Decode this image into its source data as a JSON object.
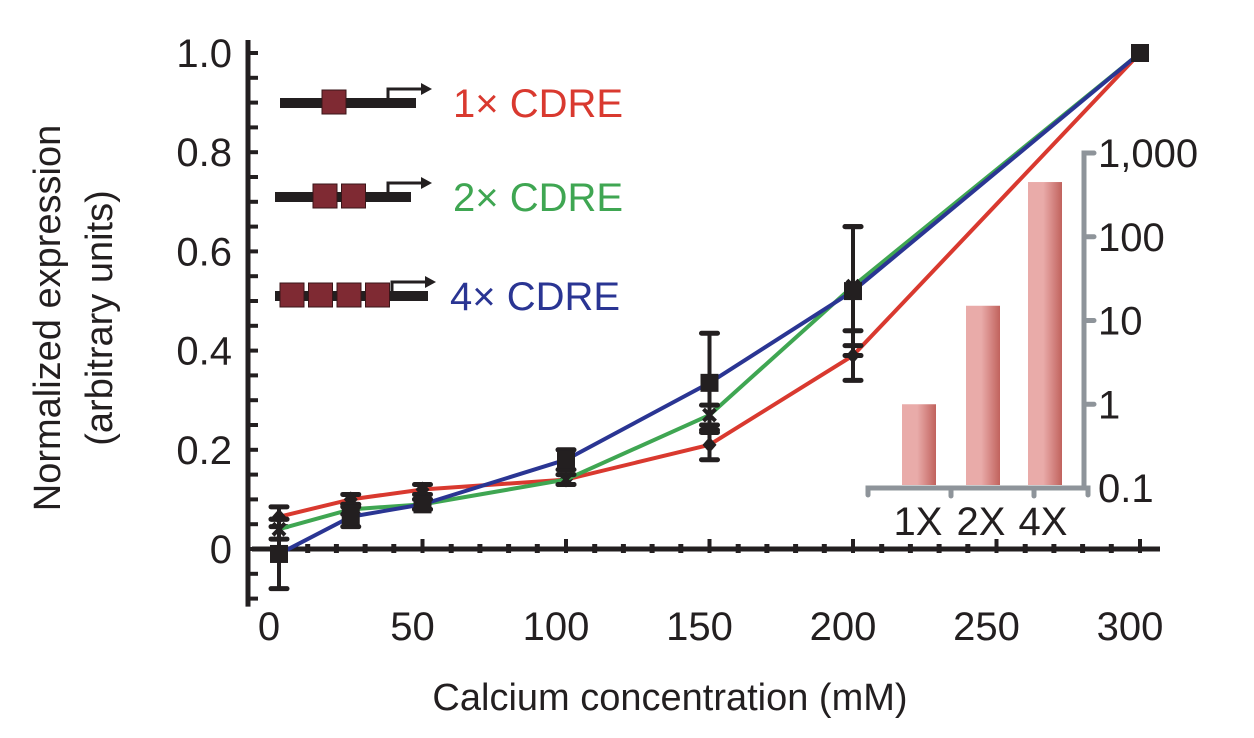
{
  "chart_data": {
    "type": "line",
    "title": "",
    "xlabel": "Calcium concentration (mM)",
    "ylabel": "Normalized expression",
    "ylabel_line2": "(arbitrary units)",
    "xlim": [
      0,
      300
    ],
    "ylim": [
      -0.1,
      1.0
    ],
    "x_ticks": [
      0,
      50,
      100,
      150,
      200,
      250,
      300
    ],
    "x_tick_labels": [
      "0",
      "50",
      "100",
      "150",
      "200",
      "250",
      "300"
    ],
    "x_minor_step": 10,
    "y_ticks": [
      0,
      0.2,
      0.4,
      0.6,
      0.8,
      1.0
    ],
    "y_tick_labels": [
      "0",
      "0.2",
      "0.4",
      "0.6",
      "0.8",
      "1.0"
    ],
    "y_minor_step": 0.05,
    "grid": false,
    "legend_position": "top-left",
    "x": [
      0,
      25,
      50,
      100,
      150,
      200,
      300
    ],
    "series": [
      {
        "name": "1× CDRE",
        "color": "#d9392f",
        "marker": "diamond",
        "copies": 1,
        "values": [
          0.065,
          0.1,
          0.12,
          0.14,
          0.21,
          0.39,
          1.0
        ],
        "error": [
          0.02,
          0.01,
          0.01,
          0.01,
          0.03,
          0.05,
          0
        ]
      },
      {
        "name": "2× CDRE",
        "color": "#3fa652",
        "marker": "x",
        "copies": 2,
        "values": [
          0.04,
          0.08,
          0.09,
          0.14,
          0.27,
          0.53,
          1.0
        ],
        "error": [
          0.02,
          0.01,
          0.01,
          0.01,
          0.02,
          0.12,
          0
        ]
      },
      {
        "name": "4× CDRE",
        "color": "#2a3593",
        "marker": "square",
        "copies": 4,
        "values": [
          -0.01,
          0.065,
          0.09,
          0.18,
          0.335,
          0.52,
          1.0
        ],
        "error": [
          0.07,
          0.02,
          0.01,
          0.02,
          0.1,
          0.13,
          0
        ]
      }
    ],
    "inset": {
      "type": "bar",
      "scale": "log",
      "categories": [
        "1X",
        "2X",
        "4X"
      ],
      "values": [
        1,
        15,
        450
      ],
      "ylim": [
        0.1,
        1000
      ],
      "y_ticks": [
        0.1,
        1,
        10,
        100,
        1000
      ],
      "y_tick_labels": [
        "0.1",
        "1",
        "10",
        "100",
        "1,000"
      ],
      "bar_color_light": "#e9aba9",
      "bar_color_dark": "#c1625d",
      "axis_color": "#8e949a",
      "y_axis_side": "right"
    }
  },
  "colors": {
    "axis": "#231f20",
    "cdre_box": "#7f2a33"
  }
}
